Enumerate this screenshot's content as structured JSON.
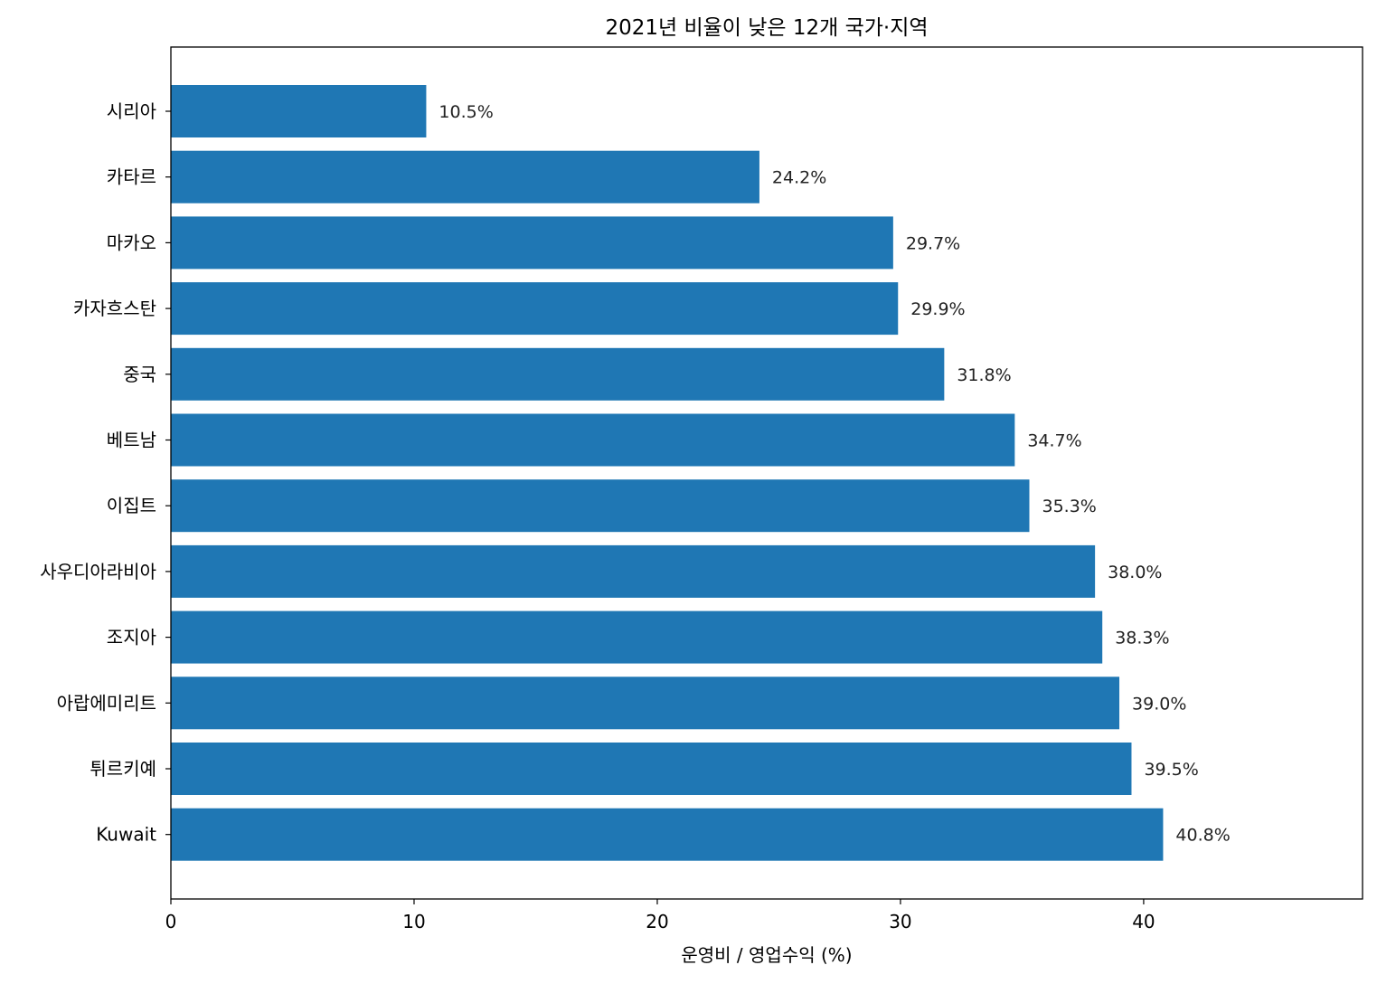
{
  "chart_data": {
    "type": "bar",
    "orientation": "horizontal",
    "title": "2021년 비율이 낮은 12개 국가·지역",
    "xlabel": "운영비 / 영업수익 (%)",
    "ylabel": "",
    "categories": [
      "시리아",
      "카타르",
      "마카오",
      "카자흐스탄",
      "중국",
      "베트남",
      "이집트",
      "사우디아라비아",
      "조지아",
      "아랍에미리트",
      "튀르키예",
      "Kuwait"
    ],
    "values": [
      10.5,
      24.2,
      29.7,
      29.9,
      31.8,
      34.7,
      35.3,
      38.0,
      38.3,
      39.0,
      39.5,
      40.8
    ],
    "value_labels": [
      "10.5%",
      "24.2%",
      "29.7%",
      "29.9%",
      "31.8%",
      "34.7%",
      "35.3%",
      "38.0%",
      "38.3%",
      "39.0%",
      "39.5%",
      "40.8%"
    ],
    "xlim": [
      0,
      49
    ],
    "xticks": [
      0,
      10,
      20,
      30,
      40
    ],
    "xtick_labels": [
      "0",
      "10",
      "20",
      "30",
      "40"
    ],
    "grid": false,
    "legend": "none",
    "bar_color": "#1f77b4"
  }
}
